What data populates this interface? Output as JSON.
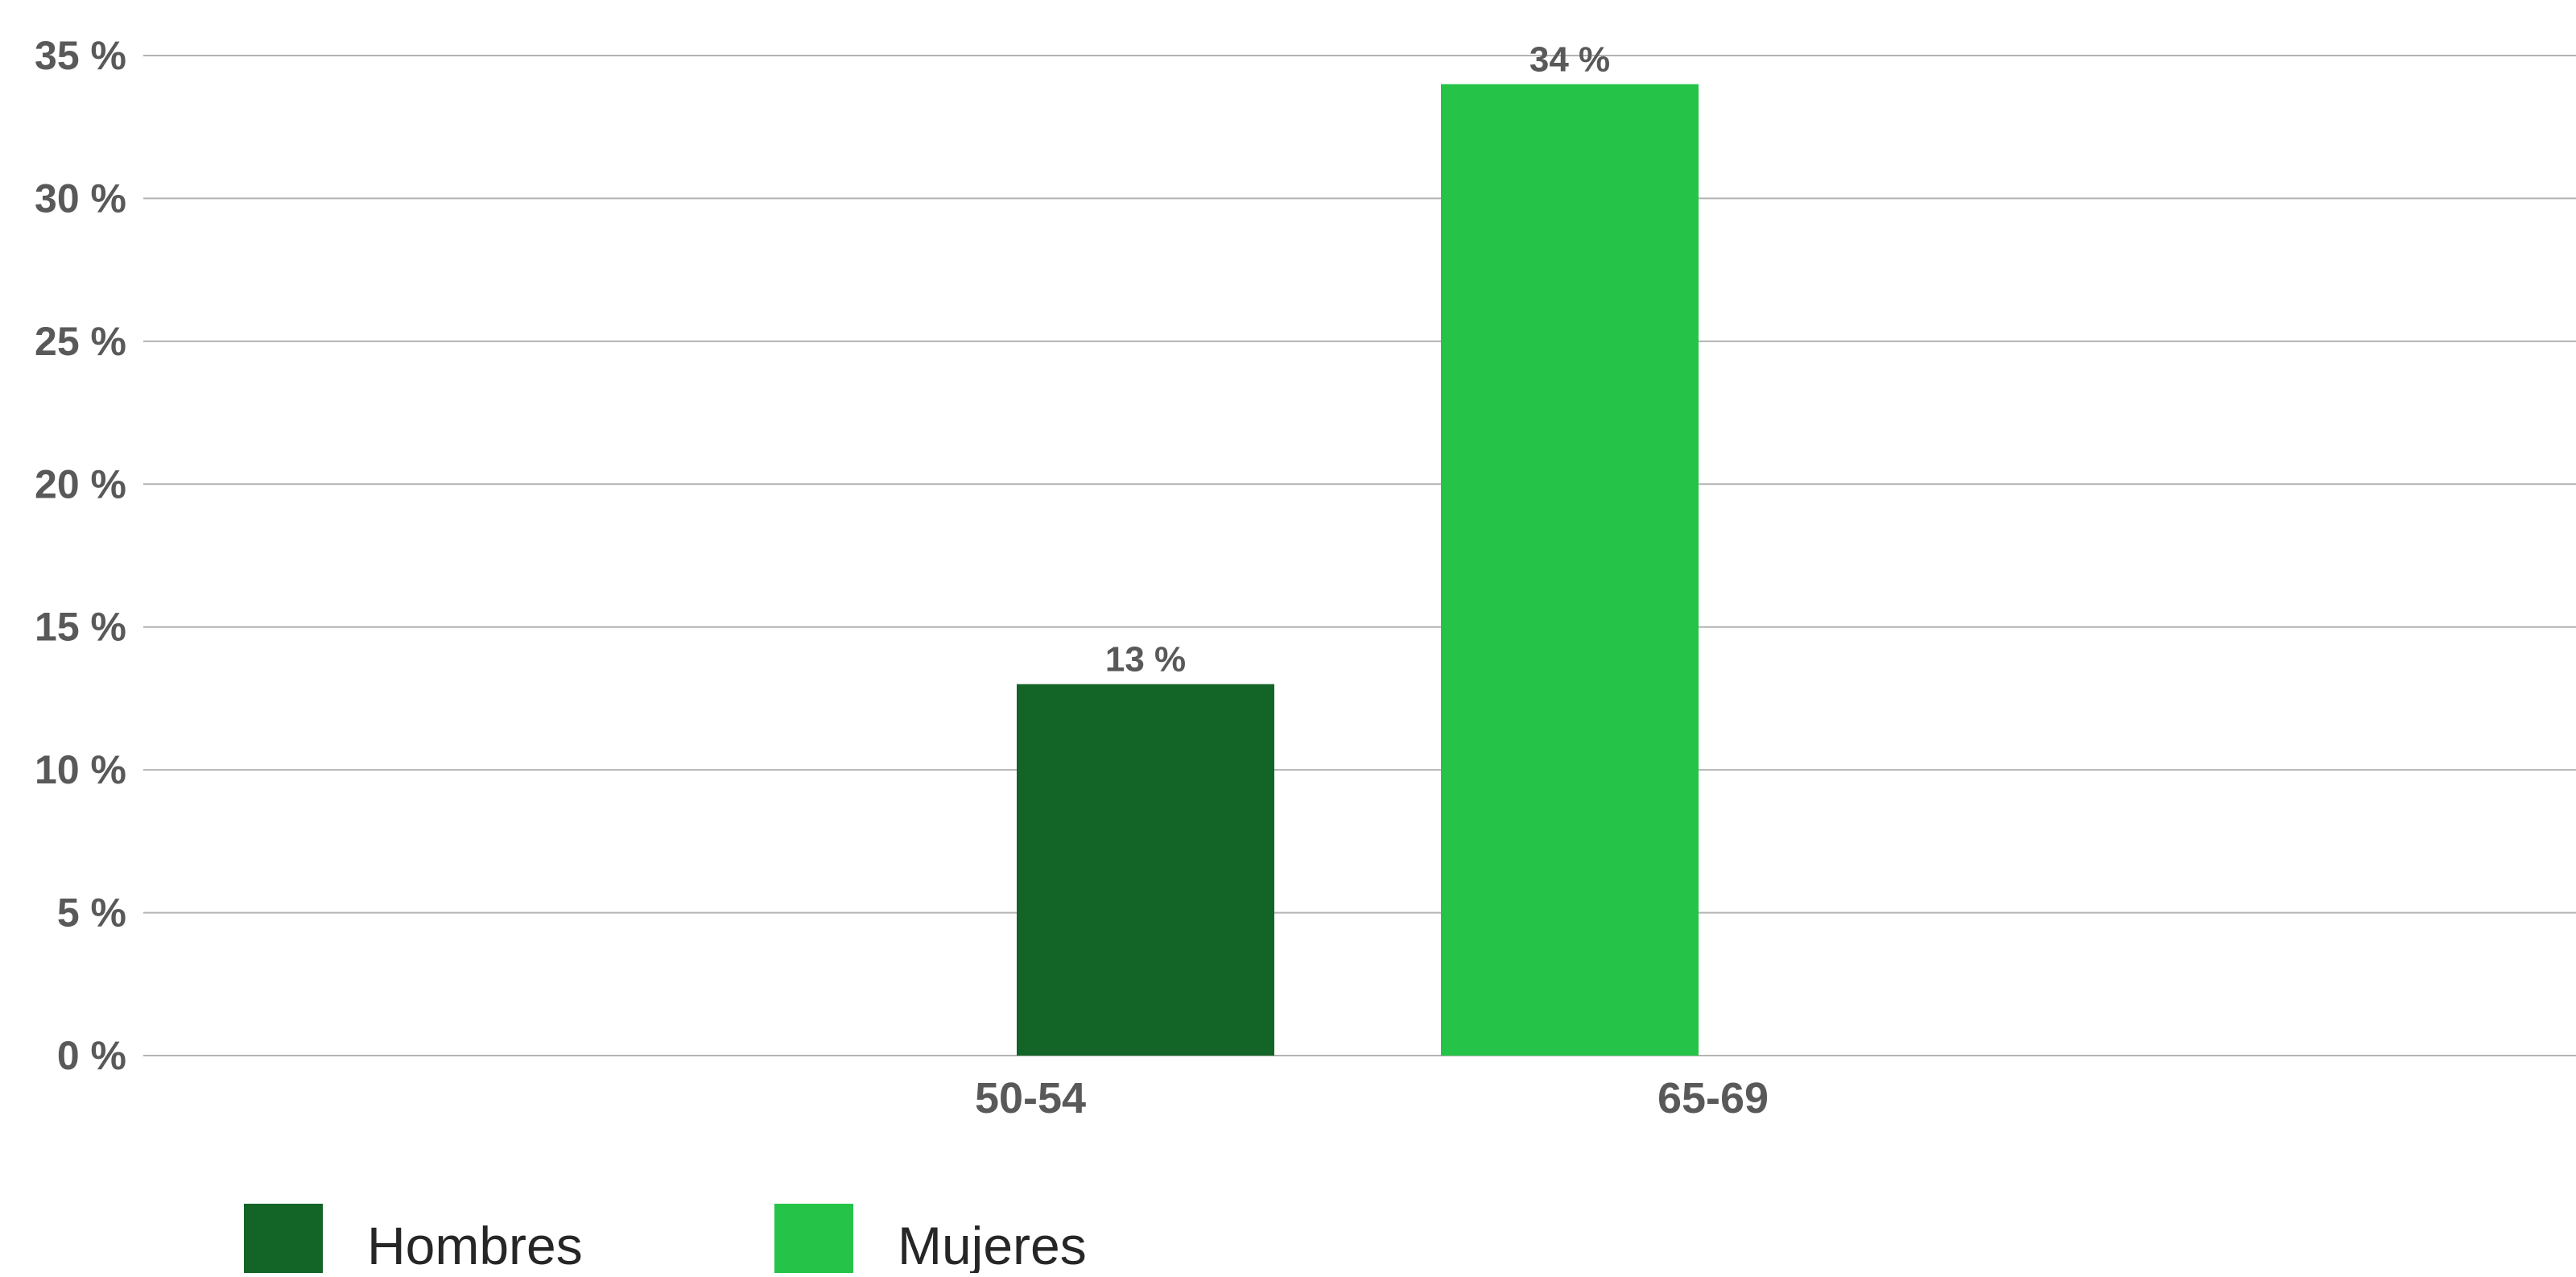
{
  "chart_data": {
    "type": "bar",
    "categories": [
      "50-54",
      "65-69"
    ],
    "series": [
      {
        "name": "Hombres",
        "color": "#136427",
        "values": [
          13,
          null
        ],
        "labels": [
          "13 %",
          ""
        ]
      },
      {
        "name": "Mujeres",
        "color": "#25c348",
        "values": [
          null,
          34
        ],
        "labels": [
          "",
          "34 %"
        ]
      }
    ],
    "y_ticks": [
      0,
      5,
      10,
      15,
      20,
      25,
      30,
      35
    ],
    "y_tick_labels": [
      "0 %",
      "5 %",
      "10 %",
      "15 %",
      "20 %",
      "25 %",
      "30 %",
      "35 %"
    ],
    "ylim": [
      0,
      35
    ],
    "grid": true,
    "legend_position": "bottom-left"
  }
}
